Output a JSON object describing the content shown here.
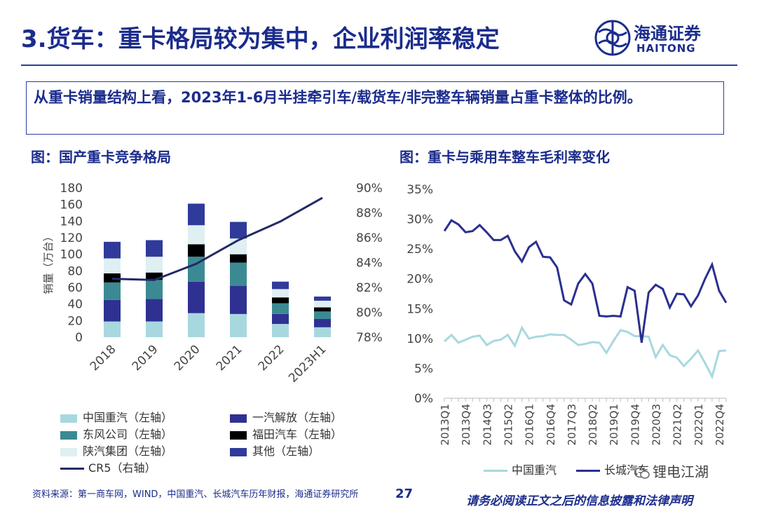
{
  "header": {
    "title": "3.货车：重卡格局较为集中，企业利润率稳定",
    "logo_cn": "海通证券",
    "logo_en": "HAITONG"
  },
  "callout": {
    "text": "从重卡销量结构上看，2023年1-6月半挂牵引车/载货车/非完整车辆销量占重卡整体的比例。"
  },
  "fig_left": {
    "title": "图：国产重卡竞争格局"
  },
  "fig_right": {
    "title": "图：重卡与乘用车整车毛利率变化"
  },
  "footer": {
    "source": "资料来源：第一商车网，WIND，中国重汽、长城汽车历年财报，海通证券研究所",
    "page": "27",
    "disclaimer": "请务必阅读正文之后的信息披露和法律声明",
    "watermark": "锂电江湖"
  },
  "colors": {
    "sinotruk": "#a8d8df",
    "faw": "#2e3192",
    "dongfeng": "#3b8a93",
    "foton": "#000000",
    "shaanxi": "#dfeff2",
    "other": "#303a9a",
    "cr5": "#232a66",
    "gwm": "#2b2f8f",
    "sinotruk_line": "#a8d8df"
  },
  "chart_data": [
    {
      "type": "bar",
      "stacked": true,
      "categories": [
        "2018",
        "2019",
        "2020",
        "2021",
        "2022",
        "2023H1"
      ],
      "ylabel": "销量（万台）",
      "ylim": [
        0,
        180
      ],
      "yticks": [
        "0",
        "20",
        "40",
        "60",
        "80",
        "100",
        "120",
        "140",
        "160",
        "180"
      ],
      "y2lim": [
        78,
        90
      ],
      "y2ticks": [
        "78%",
        "80%",
        "82%",
        "84%",
        "86%",
        "88%",
        "90%"
      ],
      "series": [
        {
          "name": "中国重汽（左轴）",
          "color_key": "sinotruk",
          "values": [
            19,
            19,
            29,
            28,
            16,
            12
          ]
        },
        {
          "name": "一汽解放（左轴）",
          "color_key": "faw",
          "values": [
            26,
            27,
            38,
            34,
            12,
            10
          ]
        },
        {
          "name": "东风公司（左轴）",
          "color_key": "dongfeng",
          "values": [
            21,
            23,
            30,
            28,
            13,
            9
          ]
        },
        {
          "name": "福田汽车（左轴）",
          "color_key": "foton",
          "values": [
            11,
            9,
            15,
            10,
            7,
            5
          ]
        },
        {
          "name": "陕汽集团（左轴）",
          "color_key": "shaanxi",
          "values": [
            18,
            19,
            23,
            19,
            10,
            8
          ]
        },
        {
          "name": "其他（左轴）",
          "color_key": "other",
          "values": [
            20,
            20,
            26,
            20,
            9,
            5
          ]
        }
      ],
      "line": {
        "name": "CR5（右轴）",
        "color_key": "cr5",
        "values": [
          82.7,
          82.6,
          83.9,
          85.8,
          87.3,
          89.2
        ]
      }
    },
    {
      "type": "line",
      "x": [
        "2013Q1",
        "2013Q2",
        "2013Q3",
        "2013Q4",
        "2014Q1",
        "2014Q2",
        "2014Q3",
        "2014Q4",
        "2015Q1",
        "2015Q2",
        "2015Q3",
        "2015Q4",
        "2016Q1",
        "2016Q2",
        "2016Q3",
        "2016Q4",
        "2017Q1",
        "2017Q2",
        "2017Q3",
        "2017Q4",
        "2018Q1",
        "2018Q2",
        "2018Q3",
        "2018Q4",
        "2019Q1",
        "2019Q2",
        "2019Q3",
        "2019Q4",
        "2020Q1",
        "2020Q2",
        "2020Q3",
        "2020Q4",
        "2021Q1",
        "2021Q2",
        "2021Q3",
        "2021Q4",
        "2022Q1",
        "2022Q2",
        "2022Q3",
        "2022Q4",
        "2023Q1"
      ],
      "xtick_labels": [
        "2013Q1",
        "2013Q4",
        "2014Q3",
        "2015Q2",
        "2016Q1",
        "2016Q4",
        "2017Q3",
        "2018Q2",
        "2019Q1",
        "2019Q4",
        "2020Q3",
        "2021Q2",
        "2022Q1",
        "2022Q4"
      ],
      "ylim": [
        0,
        35
      ],
      "yticks": [
        "0%",
        "5%",
        "10%",
        "15%",
        "20%",
        "25%",
        "30%",
        "35%"
      ],
      "series": [
        {
          "name": "中国重汽",
          "color_key": "sinotruk_line",
          "values": [
            9.5,
            10.6,
            9.3,
            9.8,
            10.3,
            10.5,
            8.9,
            9.6,
            9.8,
            10.6,
            8.8,
            11.8,
            10.0,
            10.3,
            10.4,
            10.7,
            10.6,
            10.6,
            9.8,
            8.9,
            9.1,
            9.4,
            9.3,
            7.6,
            9.6,
            11.4,
            11.1,
            10.4,
            10.4,
            10.3,
            6.9,
            8.9,
            7.2,
            6.8,
            5.4,
            6.6,
            8.0,
            5.9,
            3.6,
            7.9,
            8.0
          ]
        },
        {
          "name": "长城汽车",
          "color_key": "gwm",
          "values": [
            28.0,
            29.8,
            29.1,
            27.8,
            28.0,
            29.0,
            27.8,
            26.5,
            26.5,
            27.2,
            24.6,
            22.9,
            25.3,
            26.2,
            23.7,
            23.6,
            21.9,
            16.4,
            15.7,
            19.2,
            20.8,
            19.2,
            13.8,
            13.7,
            13.8,
            13.7,
            18.6,
            18.0,
            9.3,
            17.7,
            19.0,
            18.3,
            15.2,
            17.5,
            17.4,
            15.4,
            17.2,
            20.0,
            22.4,
            18.0,
            16.0
          ]
        }
      ]
    }
  ]
}
